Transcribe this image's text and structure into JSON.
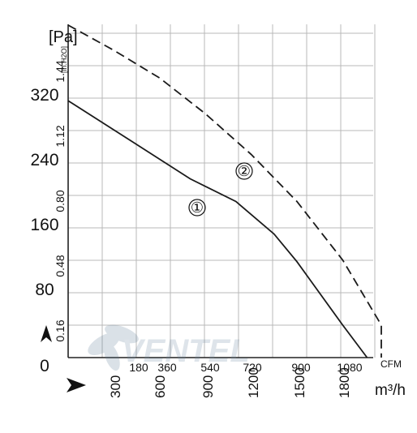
{
  "chart_data": {
    "type": "line",
    "y_primary_unit": "[Pa]",
    "y_secondary_unit": "[in.H2O]",
    "x_primary_unit": "CFM",
    "x_secondary_unit": "m³/h",
    "y_pa_ticks": [
      "0",
      "80",
      "160",
      "240",
      "320"
    ],
    "y_inh2o_ticks": [
      "0.16",
      "0.48",
      "0.80",
      "1.12",
      "1.44"
    ],
    "x_cfm_ticks": [
      "180",
      "360",
      "540",
      "720",
      "900",
      "1080"
    ],
    "x_m3h_ticks": [
      "300",
      "600",
      "900",
      "1200",
      "1500",
      "1800"
    ],
    "xlim_m3h": [
      0,
      2000
    ],
    "ylim_pa": [
      0,
      410
    ],
    "series": [
      {
        "name": "①",
        "style": "solid",
        "points": [
          [
            0,
            316
          ],
          [
            400,
            268
          ],
          [
            800,
            220
          ],
          [
            1100,
            192
          ],
          [
            1350,
            152
          ],
          [
            1500,
            118
          ],
          [
            1800,
            40
          ],
          [
            1960,
            0
          ]
        ]
      },
      {
        "name": "②",
        "style": "dashed",
        "points": [
          [
            0,
            409
          ],
          [
            300,
            378
          ],
          [
            600,
            344
          ],
          [
            900,
            300
          ],
          [
            1200,
            250
          ],
          [
            1500,
            192
          ],
          [
            1800,
            120
          ],
          [
            2100,
            40
          ],
          [
            2200,
            0
          ]
        ]
      }
    ],
    "grid": true
  },
  "watermark": "VENTEL"
}
